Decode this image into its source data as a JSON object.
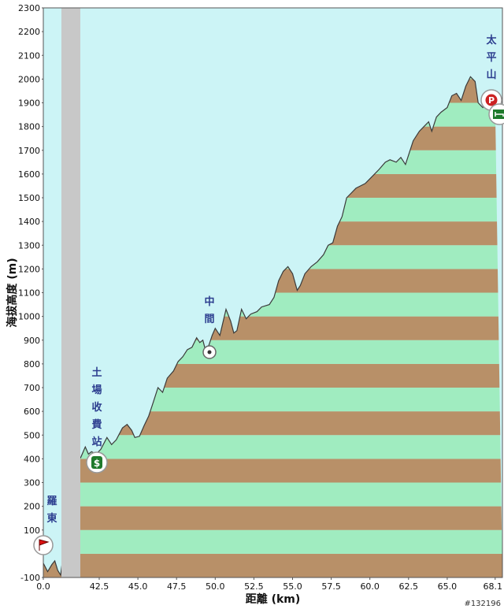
{
  "chart_data": {
    "type": "area",
    "title": "",
    "ylabel": "海拔高度 (m)",
    "xlabel": "距離 (km)",
    "ylim": [
      -100,
      2300
    ],
    "y_ticks": [
      -100,
      100,
      200,
      300,
      400,
      500,
      600,
      700,
      800,
      900,
      1000,
      1100,
      1200,
      1300,
      1400,
      1500,
      1600,
      1700,
      1800,
      1900,
      2000,
      2100,
      2200,
      2300
    ],
    "x_tick_labels": [
      "0.0",
      "42.5",
      "45.0",
      "47.5",
      "50.0",
      "52.5",
      "55.0",
      "57.5",
      "60.0",
      "62.5",
      "65.0",
      "68.1"
    ],
    "axis_break": "between 0.0 and 42.5 km",
    "band_colors": {
      "light": "#a0ecc0",
      "dark": "#b89068",
      "sky": "#ccf4f6",
      "break": "#c8c8c8",
      "outline": "#3a3a3a"
    },
    "profile": [
      [
        0.0,
        -40
      ],
      [
        0.3,
        -75
      ],
      [
        0.6,
        -45
      ],
      [
        0.8,
        -30
      ],
      [
        1.0,
        -70
      ],
      [
        1.2,
        -90
      ],
      [
        41.0,
        420
      ],
      [
        41.3,
        405
      ],
      [
        41.6,
        450
      ],
      [
        41.8,
        420
      ],
      [
        42.0,
        430
      ],
      [
        42.3,
        420
      ],
      [
        42.6,
        440
      ],
      [
        43.0,
        490
      ],
      [
        43.3,
        460
      ],
      [
        43.6,
        480
      ],
      [
        44.0,
        530
      ],
      [
        44.3,
        545
      ],
      [
        44.6,
        520
      ],
      [
        44.8,
        490
      ],
      [
        45.1,
        495
      ],
      [
        45.4,
        540
      ],
      [
        45.7,
        580
      ],
      [
        45.9,
        620
      ],
      [
        46.1,
        660
      ],
      [
        46.3,
        700
      ],
      [
        46.6,
        680
      ],
      [
        46.9,
        740
      ],
      [
        47.3,
        770
      ],
      [
        47.6,
        810
      ],
      [
        47.9,
        830
      ],
      [
        48.2,
        860
      ],
      [
        48.5,
        870
      ],
      [
        48.8,
        910
      ],
      [
        49.0,
        890
      ],
      [
        49.2,
        900
      ],
      [
        49.4,
        850
      ],
      [
        49.6,
        880
      ],
      [
        49.8,
        920
      ],
      [
        50.0,
        950
      ],
      [
        50.3,
        920
      ],
      [
        50.7,
        1030
      ],
      [
        51.0,
        980
      ],
      [
        51.2,
        930
      ],
      [
        51.4,
        940
      ],
      [
        51.7,
        1030
      ],
      [
        52.0,
        990
      ],
      [
        52.3,
        1010
      ],
      [
        52.7,
        1020
      ],
      [
        53.0,
        1040
      ],
      [
        53.5,
        1050
      ],
      [
        53.8,
        1080
      ],
      [
        54.1,
        1150
      ],
      [
        54.4,
        1190
      ],
      [
        54.7,
        1210
      ],
      [
        55.0,
        1180
      ],
      [
        55.3,
        1110
      ],
      [
        55.5,
        1130
      ],
      [
        55.8,
        1180
      ],
      [
        56.2,
        1210
      ],
      [
        56.6,
        1230
      ],
      [
        57.0,
        1260
      ],
      [
        57.3,
        1300
      ],
      [
        57.6,
        1310
      ],
      [
        57.9,
        1380
      ],
      [
        58.2,
        1420
      ],
      [
        58.5,
        1500
      ],
      [
        58.8,
        1520
      ],
      [
        59.1,
        1540
      ],
      [
        59.4,
        1550
      ],
      [
        59.7,
        1560
      ],
      [
        60.0,
        1580
      ],
      [
        60.3,
        1600
      ],
      [
        60.6,
        1620
      ],
      [
        61.0,
        1650
      ],
      [
        61.3,
        1660
      ],
      [
        61.7,
        1650
      ],
      [
        62.0,
        1670
      ],
      [
        62.3,
        1640
      ],
      [
        62.5,
        1680
      ],
      [
        62.8,
        1740
      ],
      [
        63.2,
        1780
      ],
      [
        63.5,
        1800
      ],
      [
        63.8,
        1820
      ],
      [
        64.0,
        1780
      ],
      [
        64.3,
        1840
      ],
      [
        64.6,
        1860
      ],
      [
        65.0,
        1880
      ],
      [
        65.3,
        1930
      ],
      [
        65.6,
        1940
      ],
      [
        65.9,
        1910
      ],
      [
        66.2,
        1970
      ],
      [
        66.5,
        2010
      ],
      [
        66.8,
        1990
      ],
      [
        67.0,
        1900
      ],
      [
        67.3,
        1880
      ],
      [
        67.6,
        1900
      ],
      [
        67.9,
        1880
      ],
      [
        68.1,
        1890
      ]
    ],
    "annotations": [
      {
        "label": "羅東",
        "icon": "flag-icon",
        "x": 0.0,
        "y": -60
      },
      {
        "label": "土場收費站",
        "icon": "toll-station-icon",
        "x": 41.8,
        "y": 370
      },
      {
        "label": "中間",
        "icon": "waypoint-icon",
        "x": 49.4,
        "y": 840
      },
      {
        "label": "太平山",
        "icon": "parking-icon",
        "x": 67.3,
        "y": 1910
      },
      {
        "label": "",
        "icon": "lodging-icon",
        "x": 68.1,
        "y": 1860
      }
    ],
    "watermark": "#132196"
  }
}
